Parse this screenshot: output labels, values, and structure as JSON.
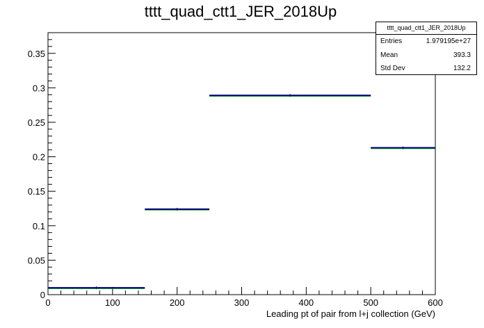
{
  "chart_data": {
    "type": "histogram",
    "title": "tttt_quad_ctt1_JER_2018Up",
    "xlabel": "Leading pt of pair from l+j collection (GeV)",
    "ylabel": "",
    "xlim": [
      0,
      600
    ],
    "ylim": [
      0,
      0.38
    ],
    "x_ticks": [
      0,
      100,
      200,
      300,
      400,
      500,
      600
    ],
    "y_ticks": [
      0,
      0.05,
      0.1,
      0.15,
      0.2,
      0.25,
      0.3,
      0.35
    ],
    "x_tick_labels": [
      "0",
      "100",
      "200",
      "300",
      "400",
      "500",
      "600"
    ],
    "y_tick_labels": [
      "0",
      "0.05",
      "0.1",
      "0.15",
      "0.2",
      "0.25",
      "0.3",
      "0.35"
    ],
    "grid": false,
    "legend": "none",
    "bins": [
      {
        "x_low": 0,
        "x_high": 150,
        "value": 0.01
      },
      {
        "x_low": 150,
        "x_high": 250,
        "value": 0.124
      },
      {
        "x_low": 250,
        "x_high": 500,
        "value": 0.289
      },
      {
        "x_low": 500,
        "x_high": 600,
        "value": 0.213
      }
    ],
    "colors": {
      "line": "#000080",
      "band": "#00aa00",
      "axis": "#000000"
    }
  },
  "stats": {
    "title": "tttt_quad_ctt1_JER_2018Up",
    "rows": [
      {
        "label": "Entries",
        "value": "1.979195e+27"
      },
      {
        "label": "Mean",
        "value": "393.3"
      },
      {
        "label": "Std Dev",
        "value": "132.2"
      }
    ]
  }
}
